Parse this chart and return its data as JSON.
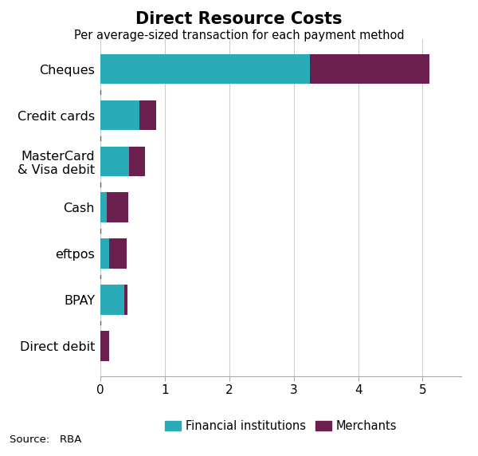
{
  "title": "Direct Resource Costs",
  "subtitle": "Per average-sized transaction for each payment method",
  "source": "Source:   RBA",
  "categories": [
    "Direct debit",
    "BPAY",
    "eftpos",
    "Cash",
    "MasterCard\n& Visa debit",
    "Credit cards",
    "Cheques"
  ],
  "financial_institutions": [
    0.0,
    0.37,
    0.14,
    0.1,
    0.44,
    0.6,
    3.25
  ],
  "merchants": [
    0.13,
    0.05,
    0.27,
    0.33,
    0.25,
    0.27,
    1.85
  ],
  "color_fi": "#2AACB8",
  "color_merchants": "#6B1F4E",
  "xlabel": "$",
  "xlim": [
    0,
    5.6
  ],
  "xticks": [
    0,
    1,
    2,
    3,
    4,
    5
  ],
  "background_color": "#ffffff",
  "legend_labels": [
    "Financial institutions",
    "Merchants"
  ],
  "bar_height": 0.65
}
